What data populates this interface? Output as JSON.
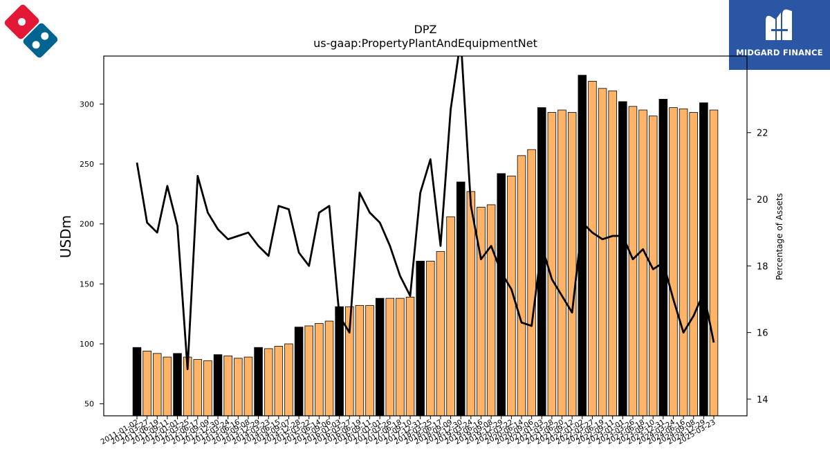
{
  "chart_data": {
    "type": "bar+line",
    "title": "DPZ",
    "subtitle": "us-gaap:PropertyPlantAndEquipmentNet",
    "ylabel": "USDm",
    "y2label": "Percentage of Assets",
    "ylim": [
      40,
      340
    ],
    "y2lim": [
      13.5,
      24.3
    ],
    "yticks": [
      "50",
      "100",
      "150",
      "200",
      "250",
      "300"
    ],
    "y2ticks": [
      "14",
      "16",
      "18",
      "20",
      "22"
    ],
    "grid": false,
    "colors": {
      "annual": "#000000",
      "quarterly": "#ffb366",
      "line": "#000000"
    },
    "x": [
      "2011-01-02",
      "2011-03-27",
      "2011-06-19",
      "2011-09-11",
      "2012-01-01",
      "2012-03-25",
      "2012-06-17",
      "2012-09-09",
      "2012-12-30",
      "2013-03-24",
      "2013-06-16",
      "2013-09-08",
      "2013-12-29",
      "2014-03-23",
      "2014-06-15",
      "2014-09-07",
      "2014-12-28",
      "2015-03-22",
      "2015-06-14",
      "2015-09-06",
      "2016-01-03",
      "2016-03-27",
      "2016-06-19",
      "2016-09-11",
      "2017-01-01",
      "2017-03-26",
      "2017-06-18",
      "2017-09-10",
      "2017-12-31",
      "2018-03-25",
      "2018-06-17",
      "2018-09-09",
      "2018-12-30",
      "2019-03-24",
      "2019-06-16",
      "2019-09-08",
      "2019-12-29",
      "2020-03-22",
      "2020-06-14",
      "2020-09-06",
      "2021-01-03",
      "2021-03-28",
      "2021-06-20",
      "2021-09-12",
      "2022-01-02",
      "2022-03-27",
      "2022-06-19",
      "2022-09-11",
      "2023-01-01",
      "2023-03-26",
      "2023-06-18",
      "2023-09-10",
      "2023-12-31",
      "2024-03-24",
      "2024-06-16",
      "2024-09-08",
      "2024-12-29",
      "2025-03-23"
    ],
    "values": [
      97,
      94,
      92,
      89,
      92,
      89,
      87,
      86,
      91,
      90,
      88,
      89,
      97,
      96,
      98,
      100,
      114,
      115,
      117,
      119,
      131,
      131,
      132,
      132,
      138,
      138,
      138,
      139,
      169,
      169,
      177,
      206,
      235,
      227,
      214,
      216,
      242,
      240,
      257,
      262,
      297,
      293,
      295,
      293,
      324,
      319,
      313,
      311,
      302,
      298,
      295,
      290,
      304,
      297,
      296,
      293,
      301,
      295
    ],
    "bar_type": [
      "annual",
      "quarterly",
      "quarterly",
      "quarterly",
      "annual",
      "quarterly",
      "quarterly",
      "quarterly",
      "annual",
      "quarterly",
      "quarterly",
      "quarterly",
      "annual",
      "quarterly",
      "quarterly",
      "quarterly",
      "annual",
      "quarterly",
      "quarterly",
      "quarterly",
      "annual",
      "quarterly",
      "quarterly",
      "quarterly",
      "annual",
      "quarterly",
      "quarterly",
      "quarterly",
      "annual",
      "quarterly",
      "quarterly",
      "quarterly",
      "annual",
      "quarterly",
      "quarterly",
      "quarterly",
      "annual",
      "quarterly",
      "quarterly",
      "quarterly",
      "annual",
      "quarterly",
      "quarterly",
      "quarterly",
      "annual",
      "quarterly",
      "quarterly",
      "quarterly",
      "annual",
      "quarterly",
      "quarterly",
      "quarterly",
      "annual",
      "quarterly",
      "quarterly",
      "quarterly",
      "annual",
      "quarterly"
    ],
    "pct_assets": [
      21.1,
      19.3,
      19.0,
      20.4,
      19.2,
      14.9,
      20.7,
      19.6,
      19.1,
      18.8,
      18.9,
      19.0,
      18.6,
      18.3,
      19.8,
      19.7,
      18.4,
      18.0,
      19.6,
      19.8,
      16.5,
      16.0,
      20.2,
      19.6,
      19.3,
      18.6,
      17.7,
      17.1,
      20.2,
      21.2,
      18.6,
      22.7,
      24.8,
      19.8,
      18.2,
      18.6,
      17.8,
      17.3,
      16.3,
      16.2,
      18.6,
      17.6,
      17.1,
      16.6,
      19.3,
      19.0,
      18.8,
      18.9,
      18.9,
      18.2,
      18.5,
      17.9,
      18.1,
      17.0,
      16.0,
      16.5,
      17.2,
      15.7
    ]
  },
  "branding": {
    "left_logo": "dominos-domino-logo",
    "right_logo_text": "MIDGARD FINANCE"
  }
}
